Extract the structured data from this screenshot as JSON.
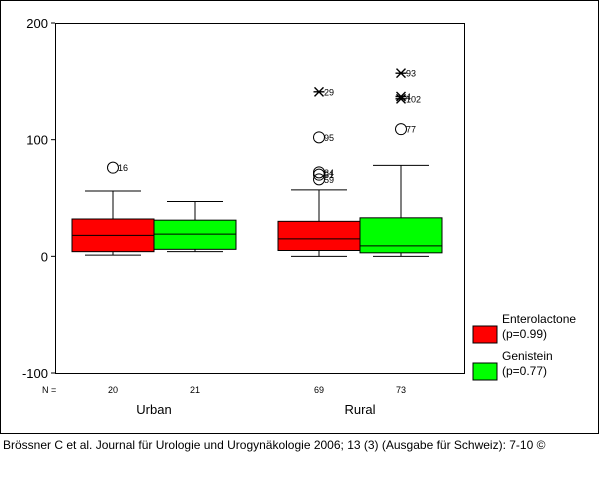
{
  "chart_data": {
    "type": "boxplot",
    "title": "",
    "xlabel": "",
    "ylabel": "",
    "ylim": [
      -100,
      200
    ],
    "yticks": [
      -100,
      0,
      100,
      200
    ],
    "n_label": "N =",
    "groups": [
      {
        "label": "Urban",
        "boxes": [
          {
            "series": "Enterolactone",
            "n": "20",
            "min": 1,
            "q1": 4,
            "median": 18,
            "q3": 32,
            "max": 56,
            "outliers": [
              {
                "value": 76,
                "marker": "circle",
                "label": "16"
              }
            ]
          },
          {
            "series": "Genistein",
            "n": "21",
            "min": 4,
            "q1": 6,
            "median": 19,
            "q3": 31,
            "max": 47,
            "outliers": []
          }
        ]
      },
      {
        "label": "Rural",
        "boxes": [
          {
            "series": "Enterolactone",
            "n": "69",
            "min": 0,
            "q1": 5,
            "median": 15,
            "q3": 30,
            "max": 57,
            "outliers": [
              {
                "value": 141,
                "marker": "star",
                "label": "29"
              },
              {
                "value": 102,
                "marker": "circle",
                "label": "95"
              },
              {
                "value": 72,
                "marker": "circle",
                "label": "84"
              },
              {
                "value": 70,
                "marker": "circle",
                "label": "61"
              },
              {
                "value": 66,
                "marker": "circle",
                "label": "59"
              }
            ]
          },
          {
            "series": "Genistein",
            "n": "73",
            "min": 0,
            "q1": 3,
            "median": 9,
            "q3": 33,
            "max": 78,
            "outliers": [
              {
                "value": 157,
                "marker": "star",
                "label": "93"
              },
              {
                "value": 137,
                "marker": "star",
                "label": "4"
              },
              {
                "value": 135,
                "marker": "star",
                "label": "102"
              },
              {
                "value": 109,
                "marker": "circle",
                "label": "77"
              }
            ]
          }
        ]
      }
    ],
    "legend": {
      "position": "right",
      "entries": [
        {
          "name": "Enterolactone",
          "detail": "(p=0.99)",
          "color": "#ff0000"
        },
        {
          "name": "Genistein",
          "detail": "(p=0.77)",
          "color": "#00ff00"
        }
      ]
    }
  },
  "caption": "Brössner C et al. Journal für Urologie und Urogynäkologie 2006; 13 (3) (Ausgabe für Schweiz): 7-10 ©"
}
